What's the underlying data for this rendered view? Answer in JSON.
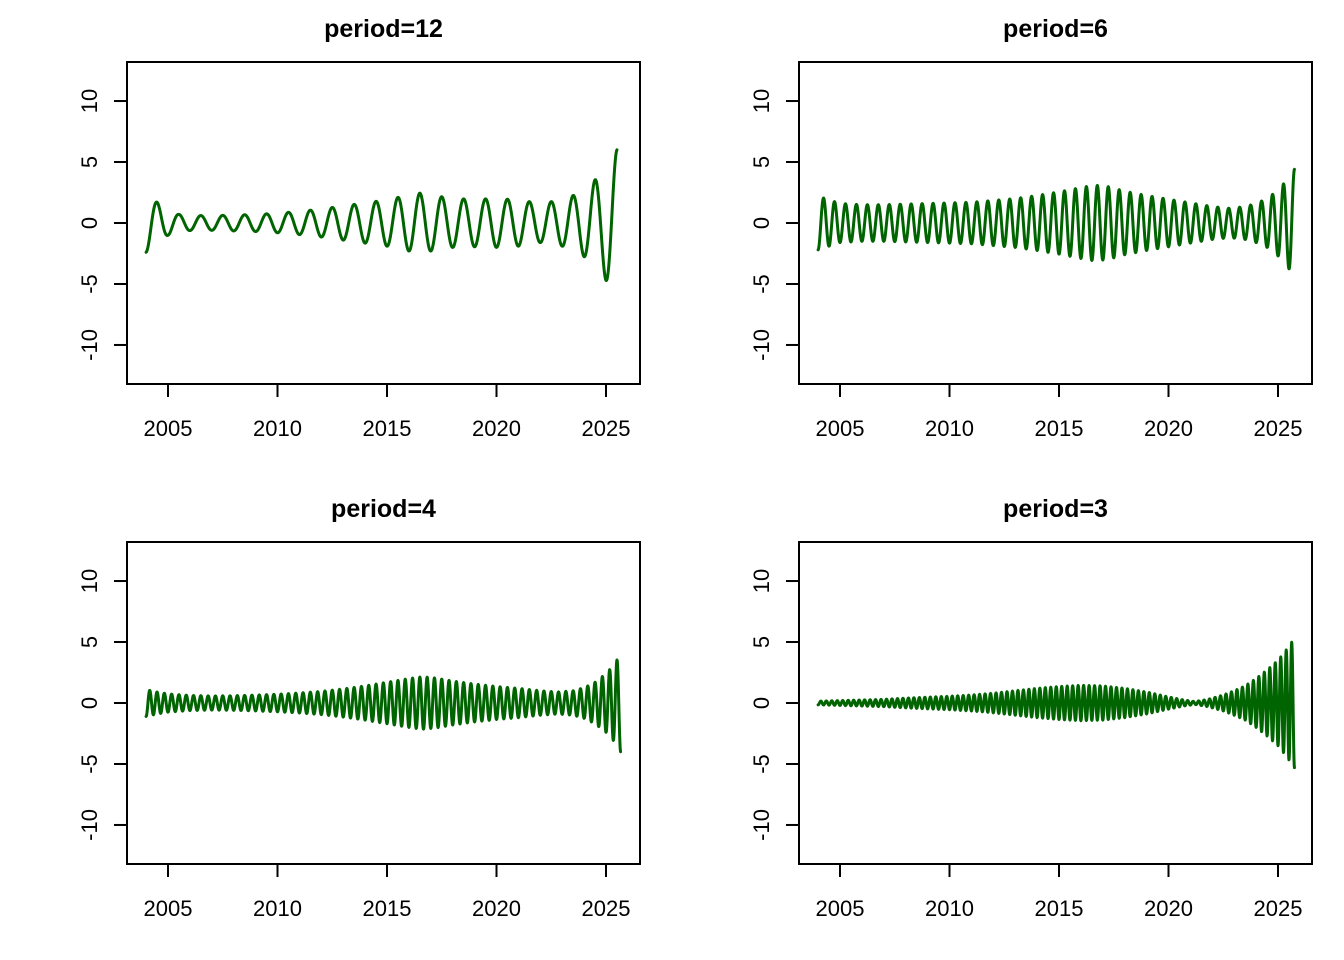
{
  "figure": {
    "background": "#ffffff",
    "series_color": "#006400",
    "axis_color": "#000000",
    "layout": "2x2-grid"
  },
  "axes": {
    "x_tick_values": [
      2005,
      2010,
      2015,
      2020,
      2025
    ],
    "x_tick_labels": [
      "2005",
      "2010",
      "2015",
      "2020",
      "2025"
    ],
    "y_tick_values": [
      -10,
      -5,
      0,
      5,
      10
    ],
    "y_tick_labels": [
      "-10",
      "-5",
      "0",
      "5",
      "10"
    ],
    "ylim": [
      -13.2,
      13.2
    ],
    "grid": "off",
    "legend": "none"
  },
  "chart_data": [
    {
      "type": "line",
      "title": "period=12",
      "period_months": 12,
      "cycle_years": 1.0,
      "peak_at_fraction_of_year": 0.5,
      "t_start": 2004.0,
      "t_end": 2025.5,
      "description": "oscillation y(t)=A(t)*cos(2*pi*(t-peak)/cycle); amplitude envelope A(t) below",
      "amplitude_envelope": [
        [
          2004.0,
          2.4
        ],
        [
          2004.5,
          1.7
        ],
        [
          2005.0,
          1.0
        ],
        [
          2005.5,
          0.7
        ],
        [
          2006,
          0.62
        ],
        [
          2007,
          0.6
        ],
        [
          2008,
          0.65
        ],
        [
          2009,
          0.7
        ],
        [
          2010,
          0.8
        ],
        [
          2011,
          0.95
        ],
        [
          2012,
          1.15
        ],
        [
          2013,
          1.4
        ],
        [
          2014,
          1.65
        ],
        [
          2015,
          1.9
        ],
        [
          2016,
          2.3
        ],
        [
          2016.5,
          2.45
        ],
        [
          2017,
          2.3
        ],
        [
          2018,
          2.0
        ],
        [
          2019,
          1.95
        ],
        [
          2020,
          2.0
        ],
        [
          2021,
          1.9
        ],
        [
          2022,
          1.6
        ],
        [
          2023,
          1.9
        ],
        [
          2023.7,
          2.4
        ],
        [
          2024.2,
          3.0
        ],
        [
          2024.7,
          3.9
        ],
        [
          2025.0,
          4.7
        ],
        [
          2025.25,
          5.3
        ],
        [
          2025.5,
          6.0
        ]
      ]
    },
    {
      "type": "line",
      "title": "period=6",
      "period_months": 6,
      "cycle_years": 0.5,
      "peak_at_fraction_of_year": 0.25,
      "t_start": 2004.0,
      "t_end": 2025.75,
      "description": "oscillation y(t)=A(t)*cos(2*pi*(t-peak)/cycle); amplitude envelope A(t) below",
      "amplitude_envelope": [
        [
          2004.0,
          2.2
        ],
        [
          2004.5,
          1.9
        ],
        [
          2005,
          1.6
        ],
        [
          2006,
          1.5
        ],
        [
          2007,
          1.5
        ],
        [
          2008,
          1.55
        ],
        [
          2009,
          1.6
        ],
        [
          2010,
          1.65
        ],
        [
          2011,
          1.7
        ],
        [
          2012,
          1.85
        ],
        [
          2013,
          2.0
        ],
        [
          2014,
          2.25
        ],
        [
          2015,
          2.55
        ],
        [
          2016,
          2.9
        ],
        [
          2016.6,
          3.1
        ],
        [
          2017.2,
          3.0
        ],
        [
          2018,
          2.6
        ],
        [
          2019,
          2.25
        ],
        [
          2020,
          1.95
        ],
        [
          2021,
          1.65
        ],
        [
          2022,
          1.35
        ],
        [
          2022.8,
          1.2
        ],
        [
          2023.5,
          1.35
        ],
        [
          2024,
          1.6
        ],
        [
          2024.5,
          2.0
        ],
        [
          2025,
          2.7
        ],
        [
          2025.4,
          3.5
        ],
        [
          2025.75,
          4.4
        ]
      ]
    },
    {
      "type": "line",
      "title": "period=4",
      "period_months": 4,
      "cycle_years": 0.3333333,
      "peak_at_fraction_of_year": 0.1666667,
      "t_start": 2004.0,
      "t_end": 2025.667,
      "description": "oscillation y(t)=A(t)*cos(2*pi*(t-peak)/cycle); amplitude envelope A(t) below",
      "amplitude_envelope": [
        [
          2004.0,
          1.1
        ],
        [
          2004.5,
          0.9
        ],
        [
          2005,
          0.75
        ],
        [
          2006,
          0.62
        ],
        [
          2007,
          0.58
        ],
        [
          2008,
          0.6
        ],
        [
          2009,
          0.65
        ],
        [
          2010,
          0.72
        ],
        [
          2011,
          0.82
        ],
        [
          2012,
          0.95
        ],
        [
          2013,
          1.15
        ],
        [
          2014,
          1.4
        ],
        [
          2015,
          1.7
        ],
        [
          2016,
          2.0
        ],
        [
          2016.6,
          2.15
        ],
        [
          2017.2,
          2.05
        ],
        [
          2018,
          1.8
        ],
        [
          2019,
          1.55
        ],
        [
          2020,
          1.35
        ],
        [
          2021,
          1.2
        ],
        [
          2022,
          1.0
        ],
        [
          2022.8,
          0.9
        ],
        [
          2023.5,
          1.0
        ],
        [
          2024,
          1.25
        ],
        [
          2024.5,
          1.7
        ],
        [
          2025,
          2.4
        ],
        [
          2025.35,
          3.1
        ],
        [
          2025.667,
          4.0
        ]
      ]
    },
    {
      "type": "line",
      "title": "period=3",
      "period_months": 3,
      "cycle_years": 0.25,
      "peak_at_fraction_of_year": 0.125,
      "t_start": 2004.0,
      "t_end": 2025.75,
      "description": "oscillation y(t)=A(t)*cos(2*pi*(t-peak)/cycle); amplitude envelope A(t) below",
      "amplitude_envelope": [
        [
          2004.0,
          0.15
        ],
        [
          2005,
          0.2
        ],
        [
          2006,
          0.25
        ],
        [
          2007,
          0.3
        ],
        [
          2008,
          0.4
        ],
        [
          2009,
          0.48
        ],
        [
          2010,
          0.55
        ],
        [
          2011,
          0.65
        ],
        [
          2012,
          0.8
        ],
        [
          2013,
          1.0
        ],
        [
          2014,
          1.2
        ],
        [
          2015,
          1.35
        ],
        [
          2016,
          1.45
        ],
        [
          2017,
          1.4
        ],
        [
          2018,
          1.2
        ],
        [
          2019,
          0.9
        ],
        [
          2020,
          0.5
        ],
        [
          2020.7,
          0.25
        ],
        [
          2021.2,
          0.12
        ],
        [
          2021.8,
          0.3
        ],
        [
          2022.5,
          0.65
        ],
        [
          2023,
          1.0
        ],
        [
          2023.5,
          1.4
        ],
        [
          2024,
          2.0
        ],
        [
          2024.5,
          2.7
        ],
        [
          2025,
          3.5
        ],
        [
          2025.4,
          4.4
        ],
        [
          2025.75,
          5.3
        ]
      ]
    }
  ]
}
